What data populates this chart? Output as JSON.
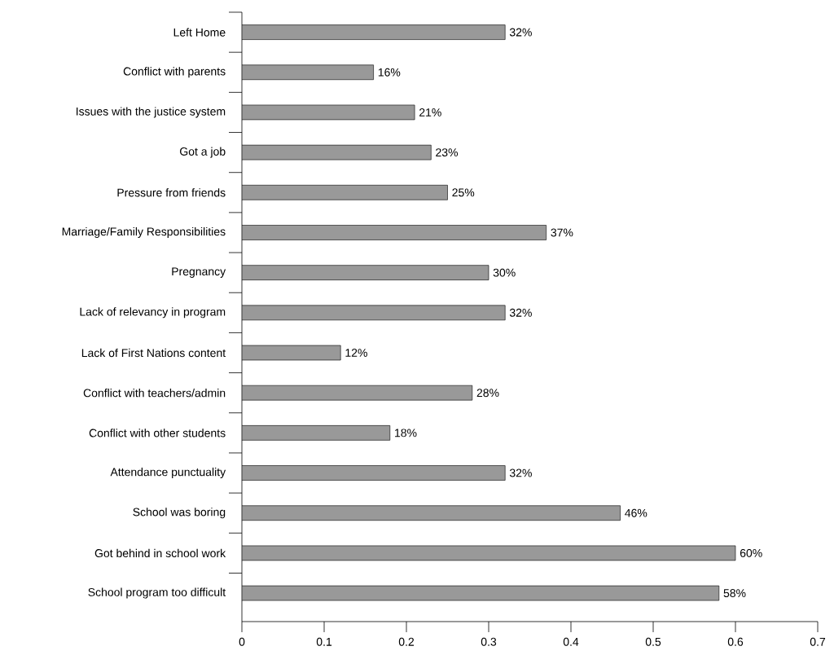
{
  "chart_data": {
    "type": "bar",
    "orientation": "horizontal",
    "categories": [
      "Left Home",
      "Conflict with parents",
      "Issues with the justice system",
      "Got a job",
      "Pressure from friends",
      "Marriage/Family Responsibilities",
      "Pregnancy",
      "Lack of relevancy in program",
      "Lack of First Nations content",
      "Conflict with teachers/admin",
      "Conflict with other students",
      "Attendance punctuality",
      "School was boring",
      "Got behind in school work",
      "School program too difficult"
    ],
    "values": [
      0.32,
      0.16,
      0.21,
      0.23,
      0.25,
      0.37,
      0.3,
      0.32,
      0.12,
      0.28,
      0.18,
      0.32,
      0.46,
      0.6,
      0.58
    ],
    "value_labels": [
      "32%",
      "16%",
      "21%",
      "23%",
      "25%",
      "37%",
      "30%",
      "32%",
      "12%",
      "28%",
      "18%",
      "32%",
      "46%",
      "60%",
      "58%"
    ],
    "color": "#999999",
    "xlim": [
      0,
      0.7
    ],
    "xticks": [
      0,
      0.1,
      0.2,
      0.3,
      0.4,
      0.5,
      0.6,
      0.7
    ]
  }
}
